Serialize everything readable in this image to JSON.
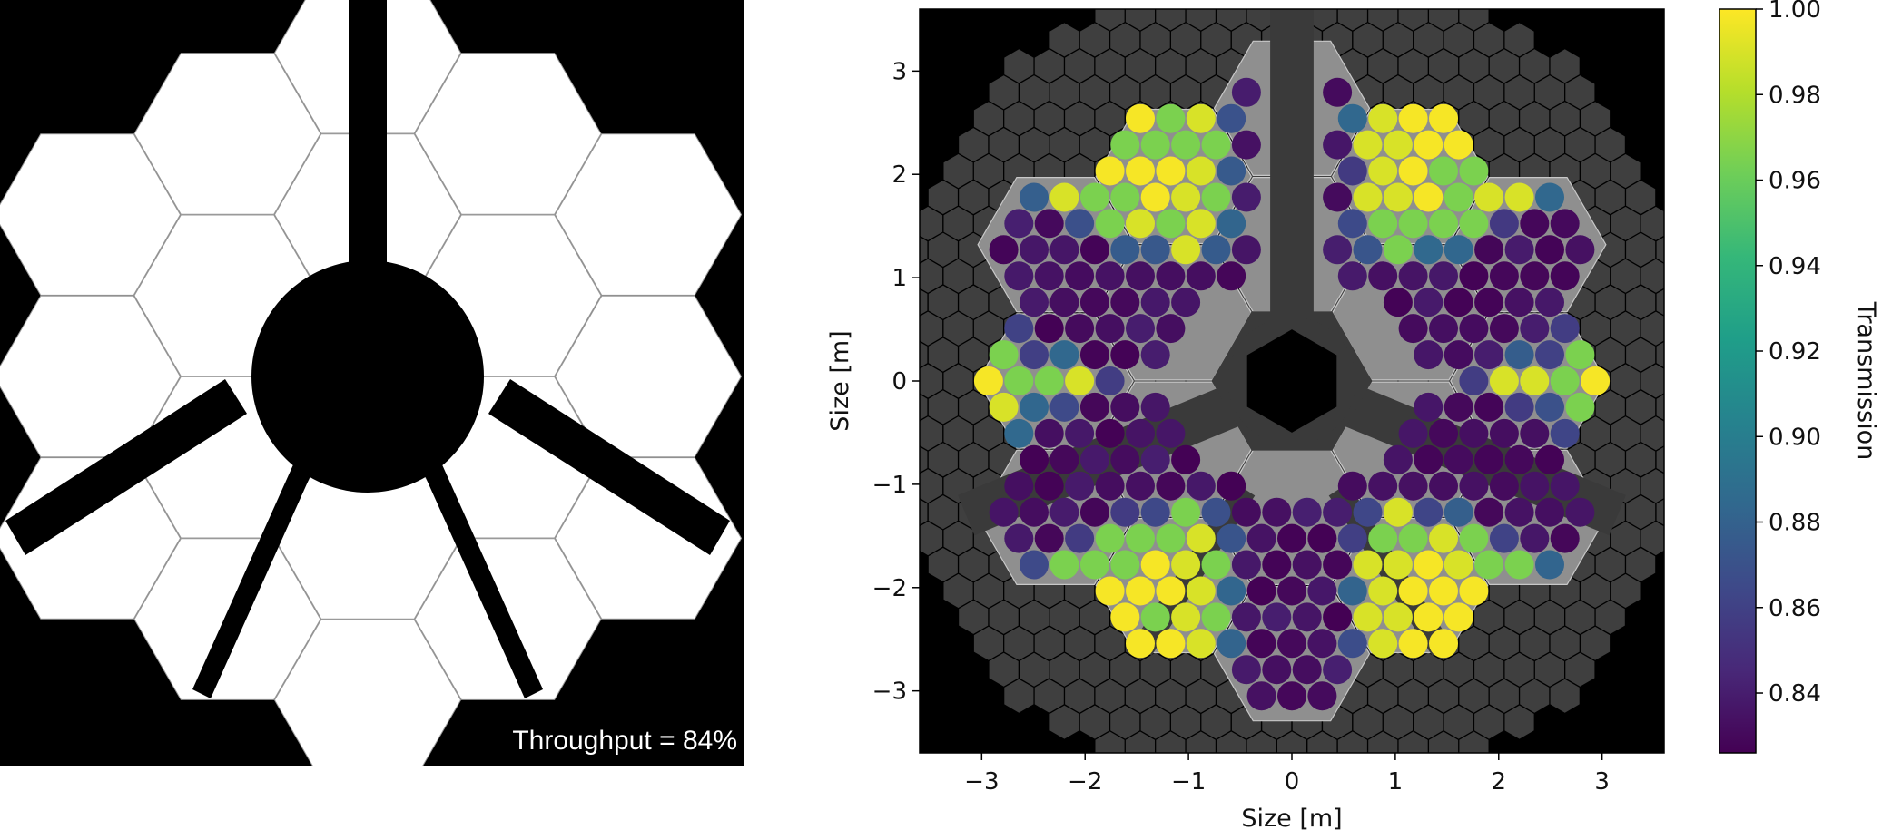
{
  "left_panel": {
    "annotation": "Throughput = 84%",
    "colors": {
      "background": "#000000",
      "segment": "#ffffff"
    }
  },
  "chart_data": {
    "type": "heatmap",
    "xlabel": "Size [m]",
    "ylabel": "Size [m]",
    "xlim": [
      -3.6,
      3.6
    ],
    "ylim": [
      -3.6,
      3.6
    ],
    "xticks": [
      "−3",
      "−2",
      "−1",
      "0",
      "1",
      "2",
      "3"
    ],
    "yticks": [
      "3",
      "2",
      "1",
      "0",
      "−1",
      "−2",
      "−3"
    ],
    "grid": false,
    "hex_segments": 18,
    "hex_segment_flat_to_flat_m": 1.32,
    "colorbar": {
      "label": "Transmission",
      "range": [
        0.826,
        1.0
      ],
      "ticks": [
        "1.00",
        "0.98",
        "0.96",
        "0.94",
        "0.92",
        "0.90",
        "0.88",
        "0.86",
        "0.84"
      ],
      "colormap": [
        "#440154",
        "#482878",
        "#3e4989",
        "#31688e",
        "#26828e",
        "#1f9e89",
        "#35b779",
        "#6ece58",
        "#b5de2b",
        "#fde725"
      ]
    },
    "colors": {
      "background": "#000000",
      "grid_hex": "#3f3f3f",
      "segment": "#8f8f8f",
      "strut": "#3a3a3a"
    }
  }
}
